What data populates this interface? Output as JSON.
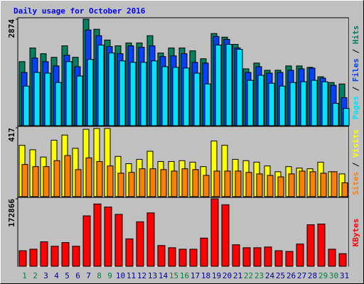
{
  "chart_data": {
    "type": "bar",
    "title": "Daily usage for October 2016",
    "categories": [
      "1",
      "2",
      "3",
      "4",
      "5",
      "6",
      "7",
      "8",
      "9",
      "10",
      "11",
      "12",
      "13",
      "14",
      "15",
      "16",
      "17",
      "18",
      "19",
      "20",
      "21",
      "22",
      "23",
      "24",
      "25",
      "26",
      "27",
      "28",
      "29",
      "30",
      "31"
    ],
    "category_colors": [
      "#008040",
      "#008040",
      "#0000a0",
      "#0000a0",
      "#0000a0",
      "#0000a0",
      "#0000a0",
      "#008040",
      "#008040",
      "#0000a0",
      "#0000a0",
      "#0000a0",
      "#0000a0",
      "#0000a0",
      "#008040",
      "#008040",
      "#0000a0",
      "#0000a0",
      "#0000a0",
      "#0000a0",
      "#0000a0",
      "#008040",
      "#008040",
      "#0000a0",
      "#0000a0",
      "#0000a0",
      "#0000a0",
      "#0000a0",
      "#008040",
      "#008040",
      "#0000a0"
    ],
    "legend_separator": "/",
    "panels": [
      {
        "ylim": [
          0,
          2874
        ],
        "yticks": [
          2874
        ],
        "series": [
          {
            "name": "Hits",
            "color": "#008060",
            "values": [
              1728,
              2097,
              1942,
              1845,
              2156,
              1845,
              2874,
              2602,
              2311,
              2156,
              2233,
              2233,
              2428,
              1961,
              2097,
              2097,
              2020,
              1806,
              2486,
              2389,
              2194,
              1534,
              1690,
              1495,
              1495,
              1612,
              1612,
              1573,
              1321,
              1165,
              1126
            ]
          },
          {
            "name": "Files",
            "color": "#0040ff",
            "values": [
              1437,
              1825,
              1728,
              1612,
              1903,
              1592,
              2583,
              2428,
              2136,
              1942,
              2156,
              2117,
              2156,
              1864,
              1884,
              1942,
              1709,
              1690,
              2408,
              2330,
              2097,
              1437,
              1592,
              1418,
              1437,
              1495,
              1534,
              1554,
              1282,
              1088,
              757
            ]
          },
          {
            "name": "Pages",
            "color": "#00e0ff",
            "values": [
              1068,
              1437,
              1418,
              1165,
              1728,
              1340,
              1787,
              2175,
              1961,
              1748,
              1709,
              1709,
              1748,
              1592,
              1573,
              1554,
              1418,
              1126,
              2175,
              2194,
              2059,
              1223,
              1359,
              1146,
              1068,
              1165,
              1185,
              1223,
              1185,
              602,
              466
            ]
          }
        ]
      },
      {
        "ylim": [
          0,
          417
        ],
        "yticks": [
          417
        ],
        "series": [
          {
            "name": "Visits",
            "color": "#ffff00",
            "values": [
              311,
              284,
              240,
              342,
              373,
              293,
              408,
              413,
              413,
              244,
              200,
              226,
              275,
              213,
              213,
              218,
              209,
              182,
              337,
              311,
              226,
              218,
              209,
              186,
              151,
              182,
              173,
              169,
              209,
              151,
              138
            ]
          },
          {
            "name": "Sites",
            "color": "#ff8000",
            "values": [
              195,
              182,
              182,
              218,
              249,
              164,
              235,
              213,
              186,
              142,
              147,
              169,
              169,
              164,
              155,
              169,
              164,
              129,
              155,
              155,
              155,
              147,
              138,
              129,
              120,
              138,
              155,
              151,
              142,
              151,
              84
            ]
          }
        ]
      },
      {
        "ylim": [
          0,
          172866
        ],
        "yticks": [
          172866
        ],
        "series": [
          {
            "name": "KBytes",
            "color": "#ff0000",
            "values": [
              39900,
              43700,
              62700,
              51300,
              60800,
              51300,
              129200,
              159600,
              152000,
              133000,
              70300,
              114000,
              136800,
              53200,
              47500,
              43700,
              43700,
              72200,
              172866,
              157700,
              55100,
              47500,
              47500,
              49400,
              39900,
              38000,
              57000,
              106400,
              108300,
              43700,
              32300
            ]
          }
        ]
      }
    ]
  }
}
